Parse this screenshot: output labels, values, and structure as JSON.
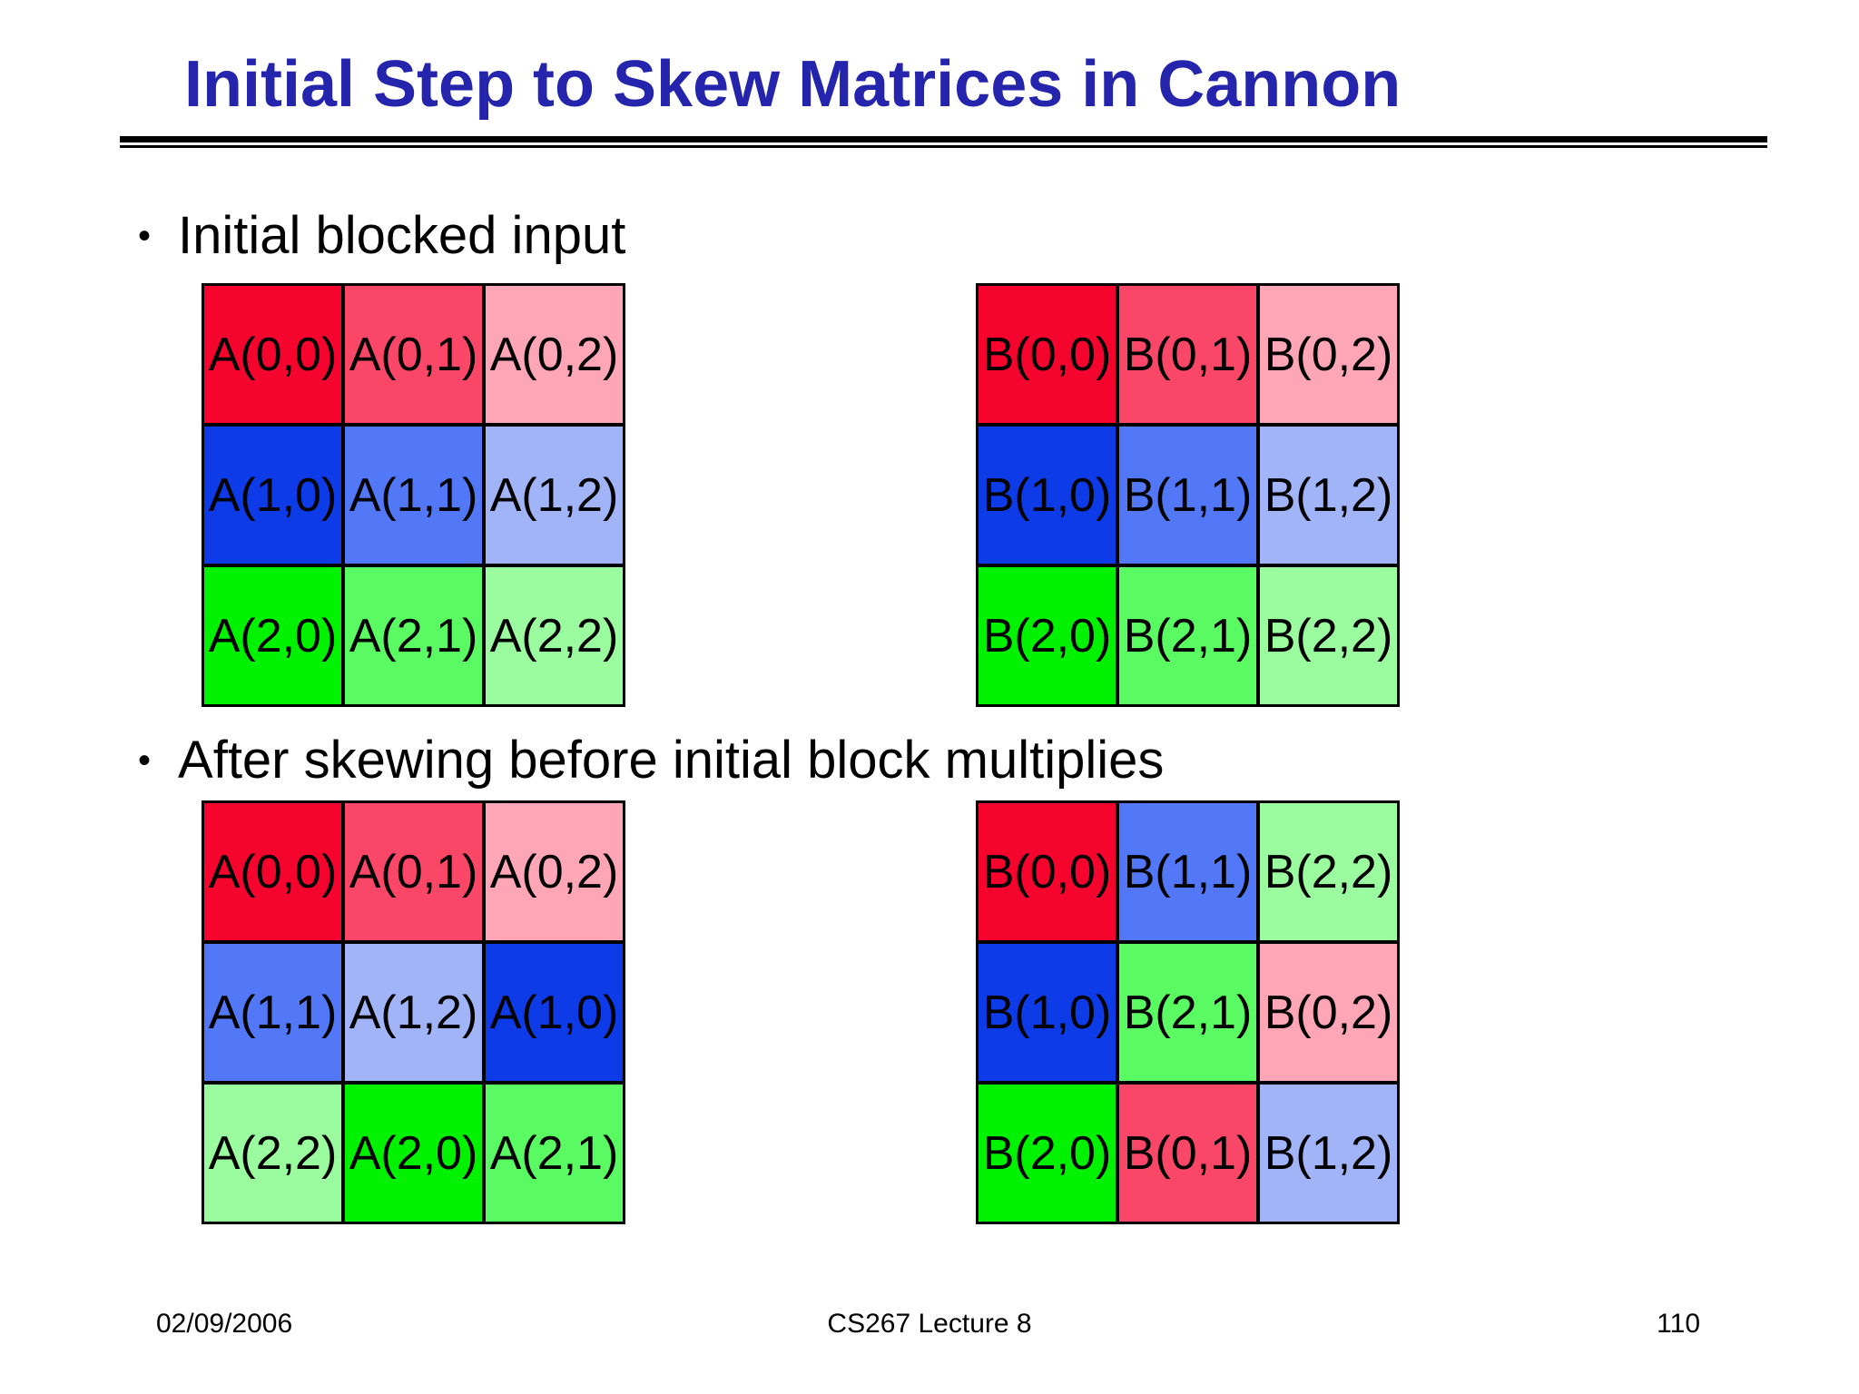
{
  "slide": {
    "title": "Initial Step to Skew Matrices in Cannon",
    "title_color": "#2424AC",
    "bullet_glyph": "•",
    "bullets": [
      "Initial blocked input",
      "After skewing before initial block multiplies"
    ],
    "footer": {
      "date": "02/09/2006",
      "course": "CS267 Lecture 8",
      "page_number": "110"
    }
  },
  "palette": {
    "red_bright": "#F5052E",
    "red_medium": "#FA4768",
    "red_light": "#FFA6B6",
    "blue_dark": "#0D3BE8",
    "blue_medium": "#5278F8",
    "blue_light": "#A2B4F8",
    "green_bright": "#00F200",
    "green_medium": "#5AFA62",
    "green_light": "#9BFB9F",
    "cell_border": "#000000"
  },
  "matrices": {
    "a_initial": {
      "cells": [
        {
          "label": "A(0,0)",
          "color": "#F5052E"
        },
        {
          "label": "A(0,1)",
          "color": "#FA4768"
        },
        {
          "label": "A(0,2)",
          "color": "#FFA6B6"
        },
        {
          "label": "A(1,0)",
          "color": "#0D3BE8"
        },
        {
          "label": "A(1,1)",
          "color": "#5278F8"
        },
        {
          "label": "A(1,2)",
          "color": "#A2B4F8"
        },
        {
          "label": "A(2,0)",
          "color": "#00F200"
        },
        {
          "label": "A(2,1)",
          "color": "#5AFA62"
        },
        {
          "label": "A(2,2)",
          "color": "#9BFB9F"
        }
      ]
    },
    "b_initial": {
      "cells": [
        {
          "label": "B(0,0)",
          "color": "#F5052E"
        },
        {
          "label": "B(0,1)",
          "color": "#FA4768"
        },
        {
          "label": "B(0,2)",
          "color": "#FFA6B6"
        },
        {
          "label": "B(1,0)",
          "color": "#0D3BE8"
        },
        {
          "label": "B(1,1)",
          "color": "#5278F8"
        },
        {
          "label": "B(1,2)",
          "color": "#A2B4F8"
        },
        {
          "label": "B(2,0)",
          "color": "#00F200"
        },
        {
          "label": "B(2,1)",
          "color": "#5AFA62"
        },
        {
          "label": "B(2,2)",
          "color": "#9BFB9F"
        }
      ]
    },
    "a_skewed": {
      "cells": [
        {
          "label": "A(0,0)",
          "color": "#F5052E"
        },
        {
          "label": "A(0,1)",
          "color": "#FA4768"
        },
        {
          "label": "A(0,2)",
          "color": "#FFA6B6"
        },
        {
          "label": "A(1,1)",
          "color": "#5278F8"
        },
        {
          "label": "A(1,2)",
          "color": "#A2B4F8"
        },
        {
          "label": "A(1,0)",
          "color": "#0D3BE8"
        },
        {
          "label": "A(2,2)",
          "color": "#9BFB9F"
        },
        {
          "label": "A(2,0)",
          "color": "#00F200"
        },
        {
          "label": "A(2,1)",
          "color": "#5AFA62"
        }
      ]
    },
    "b_skewed": {
      "cells": [
        {
          "label": "B(0,0)",
          "color": "#F5052E"
        },
        {
          "label": "B(1,1)",
          "color": "#5278F8"
        },
        {
          "label": "B(2,2)",
          "color": "#9BFB9F"
        },
        {
          "label": "B(1,0)",
          "color": "#0D3BE8"
        },
        {
          "label": "B(2,1)",
          "color": "#5AFA62"
        },
        {
          "label": "B(0,2)",
          "color": "#FFA6B6"
        },
        {
          "label": "B(2,0)",
          "color": "#00F200"
        },
        {
          "label": "B(0,1)",
          "color": "#FA4768"
        },
        {
          "label": "B(1,2)",
          "color": "#A2B4F8"
        }
      ]
    }
  }
}
